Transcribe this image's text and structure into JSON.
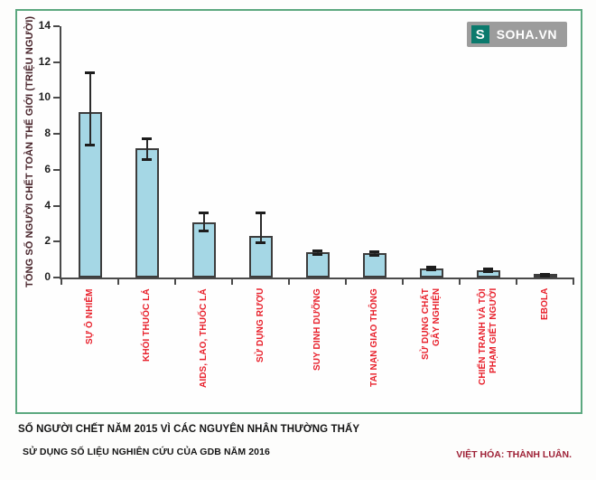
{
  "logo": {
    "badge": "S",
    "text": "SOHA.VN"
  },
  "captions": {
    "title": "SỐ NGƯỜI CHẾT NĂM 2015 VÌ CÁC NGUYÊN NHÂN THƯỜNG THẤY",
    "source": "SỬ DỤNG SỐ LIỆU NGHIÊN CỨU CỦA GDB NĂM 2016",
    "credit": "VIỆT HÓA: THÀNH LUÂN."
  },
  "chart_data": {
    "type": "bar",
    "title": "",
    "xlabel": "",
    "ylabel": "TỔNG SỐ NGƯỜI CHẾT TOÀN THẾ GIỚI (TRIỆU NGƯỜI)",
    "ylim": [
      0,
      14
    ],
    "yticks": [
      0,
      2,
      4,
      6,
      8,
      10,
      12,
      14
    ],
    "grid": false,
    "legend": null,
    "categories": [
      "SỰ Ô NHIỄM",
      "KHÓI THUỐC LÁ",
      "AIDS, LAO, THUỐC LÁ",
      "SỬ DỤNG RƯỢU",
      "SUY DINH DƯỠNG",
      "TAI NẠN GIAO THÔNG",
      "SỬ DỤNG CHẤT\nGÂY NGHIỆN",
      "CHIẾN TRANH VÀ TỘI\nPHẠM GIẾT NGƯỜI",
      "EBOLA"
    ],
    "values": [
      9.2,
      7.2,
      3.05,
      2.3,
      1.4,
      1.35,
      0.5,
      0.4,
      0.12
    ],
    "error_low": [
      7.4,
      6.55,
      2.6,
      1.95,
      1.3,
      1.25,
      0.42,
      0.33,
      0.06
    ],
    "error_high": [
      11.4,
      7.75,
      3.6,
      3.58,
      1.5,
      1.45,
      0.58,
      0.47,
      0.18
    ],
    "bar_color": "#a5d7e5",
    "bar_border": "#3d3d3d",
    "label_color": "#e8212c",
    "axis_color": "#4a4a4a",
    "frame_color": "#5ca87f"
  }
}
